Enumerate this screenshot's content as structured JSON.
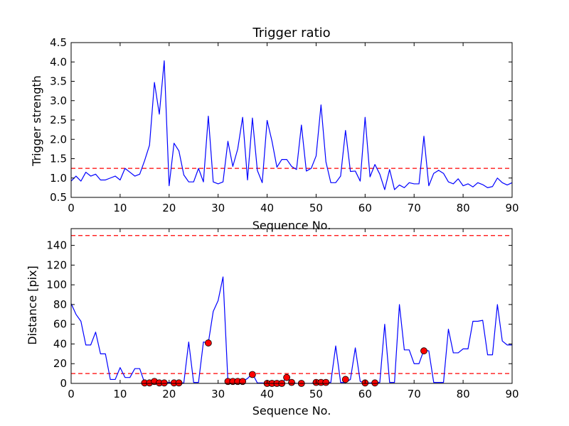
{
  "chart_data": [
    {
      "type": "line",
      "title": "Trigger ratio",
      "xlabel": "Sequence No.",
      "ylabel": "Trigger strength",
      "xlim": [
        0,
        90
      ],
      "ylim": [
        0.5,
        4.5
      ],
      "xticks": [
        "0",
        "10",
        "20",
        "30",
        "40",
        "50",
        "60",
        "70",
        "80",
        "90"
      ],
      "yticks": [
        "0.5",
        "1.0",
        "1.5",
        "2.0",
        "2.5",
        "3.0",
        "3.5",
        "4.0",
        "4.5"
      ],
      "series": [
        {
          "color": "#0000ff",
          "values": [
            0.92,
            1.05,
            0.92,
            1.15,
            1.05,
            1.1,
            0.95,
            0.95,
            1.0,
            1.05,
            0.95,
            1.25,
            1.15,
            1.05,
            1.1,
            1.45,
            1.85,
            3.47,
            2.65,
            4.03,
            0.8,
            1.9,
            1.7,
            1.08,
            0.9,
            0.9,
            1.25,
            0.9,
            2.6,
            0.9,
            0.85,
            0.9,
            1.95,
            1.3,
            1.75,
            2.57,
            0.95,
            2.55,
            1.2,
            0.88,
            2.49,
            1.95,
            1.28,
            1.48,
            1.48,
            1.3,
            1.22,
            2.37,
            1.18,
            1.25,
            1.57,
            2.89,
            1.42,
            0.88,
            0.88,
            1.05,
            2.23,
            1.17,
            1.18,
            0.92,
            2.57,
            1.03,
            1.35,
            1.1,
            0.7,
            1.22,
            0.7,
            0.82,
            0.75,
            0.88,
            0.85,
            0.85,
            2.08,
            0.8,
            1.12,
            1.2,
            1.12,
            0.9,
            0.85,
            0.98,
            0.8,
            0.85,
            0.77,
            0.88,
            0.83,
            0.75,
            0.78,
            1.0,
            0.88,
            0.82,
            0.88
          ]
        }
      ],
      "reference_lines": [
        {
          "y": 1.25,
          "color": "#ff0000",
          "style": "dashed"
        }
      ]
    },
    {
      "type": "line",
      "title": "",
      "xlabel": "Sequence No.",
      "ylabel": "Distance [pix]",
      "xlim": [
        0,
        90
      ],
      "ylim": [
        0,
        157
      ],
      "xticks": [
        "0",
        "10",
        "20",
        "30",
        "40",
        "50",
        "60",
        "70",
        "80",
        "90"
      ],
      "yticks": [
        "0",
        "20",
        "40",
        "60",
        "80",
        "100",
        "120",
        "140"
      ],
      "series": [
        {
          "color": "#0000ff",
          "values": [
            81,
            70,
            63,
            39,
            39,
            52,
            30,
            30,
            4,
            4,
            16,
            6,
            6,
            15,
            15,
            0.5,
            0.5,
            2,
            0.5,
            0.5,
            1,
            0.5,
            0.5,
            0.5,
            42,
            1,
            1,
            42,
            41,
            73,
            84,
            108,
            2,
            2,
            2,
            2,
            5,
            10,
            0.5,
            0.5,
            0,
            0,
            0,
            0,
            6,
            1,
            0,
            0,
            0,
            0,
            1,
            1,
            1,
            1,
            38,
            1,
            1,
            4,
            36,
            2,
            0.5,
            0.5,
            0.5,
            1,
            60,
            1,
            1,
            80,
            34,
            34,
            20,
            20,
            34,
            33,
            1,
            1,
            1,
            55,
            31,
            31,
            35,
            35,
            63,
            63,
            64,
            29,
            29,
            80,
            43,
            39,
            39
          ]
        }
      ],
      "markers": {
        "color": "#ff0000",
        "points": [
          [
            15,
            0.5
          ],
          [
            16,
            0.5
          ],
          [
            17,
            2
          ],
          [
            18,
            0.5
          ],
          [
            19,
            0.5
          ],
          [
            21,
            0.5
          ],
          [
            22,
            0.5
          ],
          [
            28,
            41
          ],
          [
            32,
            2
          ],
          [
            33,
            2
          ],
          [
            34,
            2
          ],
          [
            35,
            2
          ],
          [
            37,
            9
          ],
          [
            40,
            0
          ],
          [
            41,
            0
          ],
          [
            42,
            0
          ],
          [
            43,
            0
          ],
          [
            44,
            6
          ],
          [
            45,
            1
          ],
          [
            47,
            0
          ],
          [
            50,
            1
          ],
          [
            51,
            1
          ],
          [
            52,
            1
          ],
          [
            56,
            4
          ],
          [
            60,
            0.5
          ],
          [
            62,
            0.5
          ],
          [
            72,
            33
          ]
        ]
      },
      "reference_lines": [
        {
          "y": 150,
          "color": "#ff0000",
          "style": "dashed"
        },
        {
          "y": 10,
          "color": "#ff0000",
          "style": "dashed"
        }
      ]
    }
  ]
}
